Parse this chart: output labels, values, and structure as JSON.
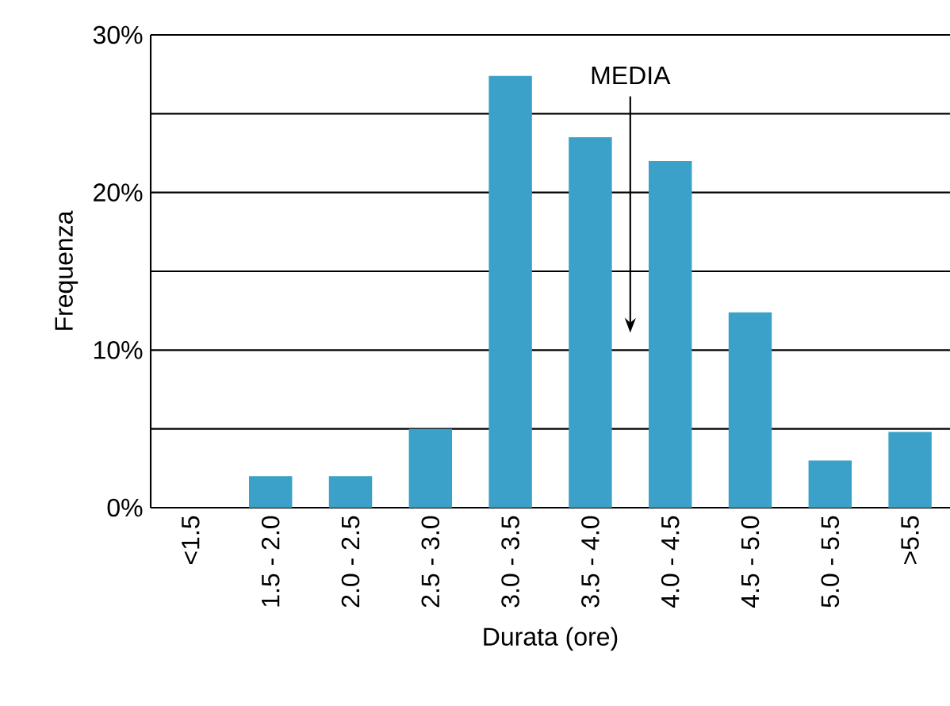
{
  "chart_data": {
    "type": "bar",
    "xlabel": "Durata (ore)",
    "ylabel": "Frequenza",
    "categories": [
      "<1.5",
      "1.5 - 2.0",
      "2.0 - 2.5",
      "2.5 - 3.0",
      "3.0 - 3.5",
      "3.5 - 4.0",
      "4.0 - 4.5",
      "4.5 - 5.0",
      "5.0 - 5.5",
      ">5.5"
    ],
    "values": [
      0,
      2,
      2,
      5,
      27.4,
      23.5,
      22,
      12.4,
      3,
      4.8
    ],
    "color": "#3ba1c8",
    "ylim": [
      0,
      30
    ],
    "yticks": [
      {
        "value": 0,
        "label": "0%"
      },
      {
        "value": 5,
        "label": null
      },
      {
        "value": 10,
        "label": "10%"
      },
      {
        "value": 15,
        "label": null
      },
      {
        "value": 20,
        "label": "20%"
      },
      {
        "value": 25,
        "label": null
      },
      {
        "value": 30,
        "label": "30%"
      }
    ],
    "grid": "y",
    "annotations": [
      "MEDIA"
    ]
  }
}
